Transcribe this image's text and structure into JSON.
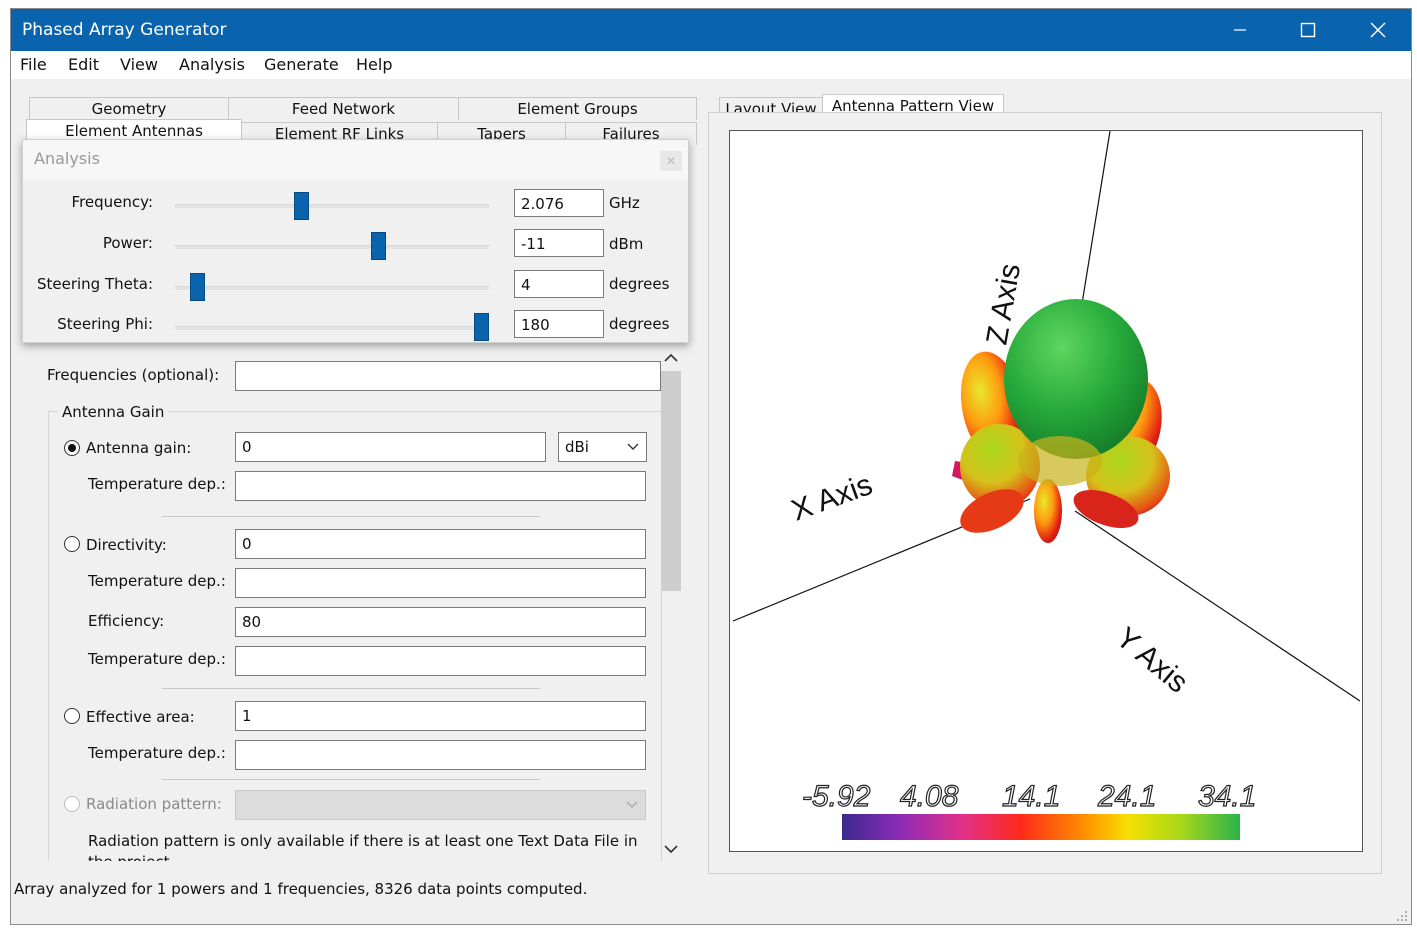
{
  "window": {
    "title": "Phased Array Generator"
  },
  "menu": [
    "File",
    "Edit",
    "View",
    "Analysis",
    "Generate",
    "Help"
  ],
  "tabs_row1": [
    "Geometry",
    "Feed Network",
    "Element Groups"
  ],
  "tabs_row2": [
    "Element Antennas",
    "Element RF Links",
    "Tapers",
    "Failures"
  ],
  "right_tabs": [
    "Layout View",
    "Antenna Pattern View"
  ],
  "analysis": {
    "title": "Analysis",
    "rows": [
      {
        "label": "Frequency:",
        "value": "2.076",
        "unit": "GHz",
        "position": 0.4
      },
      {
        "label": "Power:",
        "value": "-11",
        "unit": "dBm",
        "position": 0.645
      },
      {
        "label": "Steering Theta:",
        "value": "4",
        "unit": "degrees",
        "position": 0.07
      },
      {
        "label": "Steering Phi:",
        "value": "180",
        "unit": "degrees",
        "position": 0.975
      }
    ]
  },
  "form": {
    "frequencies_label": "Frequencies (optional):",
    "frequencies_value": "",
    "group_title": "Antenna Gain",
    "antenna_gain_label": "Antenna gain:",
    "antenna_gain_value": "0",
    "gain_unit": "dBi",
    "temp_label": "Temperature dep.:",
    "directivity_label": "Directivity:",
    "directivity_value": "0",
    "efficiency_label": "Efficiency:",
    "efficiency_value": "80",
    "effective_area_label": "Effective area:",
    "effective_area_value": "1",
    "radiation_pattern_label": "Radiation pattern:",
    "note": "Radiation pattern is only available if there is at least one Text Data File in the project"
  },
  "plot": {
    "axis_labels": {
      "x": "X Axis",
      "y": "Y Axis",
      "z": "Z Axis"
    },
    "colorbar_ticks": [
      "-5.92",
      "4.08",
      "14.1",
      "24.1",
      "34.1"
    ],
    "colorbar_colors": [
      "#3a2a8c",
      "#8a2bb8",
      "#e0308a",
      "#ff2a1a",
      "#ff8a00",
      "#f5e000",
      "#a8d81a",
      "#29b34a"
    ]
  },
  "status": "Array analyzed for 1 powers and 1 frequencies, 8326 data points computed."
}
